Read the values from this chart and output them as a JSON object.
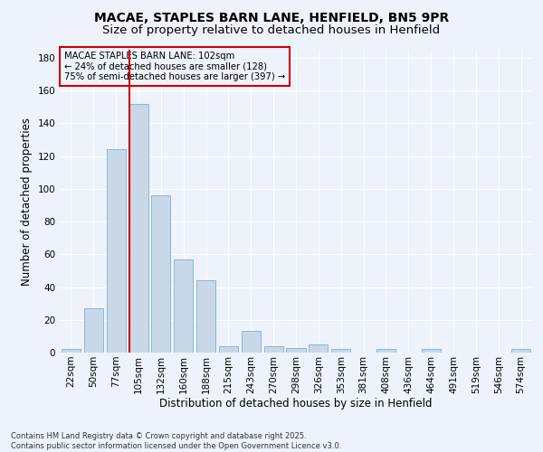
{
  "title1": "MACAE, STAPLES BARN LANE, HENFIELD, BN5 9PR",
  "title2": "Size of property relative to detached houses in Henfield",
  "xlabel": "Distribution of detached houses by size in Henfield",
  "ylabel": "Number of detached properties",
  "categories": [
    "22sqm",
    "50sqm",
    "77sqm",
    "105sqm",
    "132sqm",
    "160sqm",
    "188sqm",
    "215sqm",
    "243sqm",
    "270sqm",
    "298sqm",
    "326sqm",
    "353sqm",
    "381sqm",
    "408sqm",
    "436sqm",
    "464sqm",
    "491sqm",
    "519sqm",
    "546sqm",
    "574sqm"
  ],
  "values": [
    2,
    27,
    124,
    152,
    96,
    57,
    44,
    4,
    13,
    4,
    3,
    5,
    2,
    0,
    2,
    0,
    2,
    0,
    0,
    0,
    2
  ],
  "bar_color": "#c8d8e8",
  "bar_edge_color": "#7fafd0",
  "vline_color": "#cc0000",
  "vline_position": 2.58,
  "annotation_box_text": "MACAE STAPLES BARN LANE: 102sqm\n← 24% of detached houses are smaller (128)\n75% of semi-detached houses are larger (397) →",
  "annotation_box_color": "#cc0000",
  "annotation_fontsize": 7.2,
  "ylim": [
    0,
    185
  ],
  "yticks": [
    0,
    20,
    40,
    60,
    80,
    100,
    120,
    140,
    160,
    180
  ],
  "background_color": "#eef2fb",
  "footer": "Contains HM Land Registry data © Crown copyright and database right 2025.\nContains public sector information licensed under the Open Government Licence v3.0.",
  "title1_fontsize": 10,
  "title2_fontsize": 9.5,
  "xlabel_fontsize": 8.5,
  "ylabel_fontsize": 8.5,
  "tick_fontsize": 7.5
}
